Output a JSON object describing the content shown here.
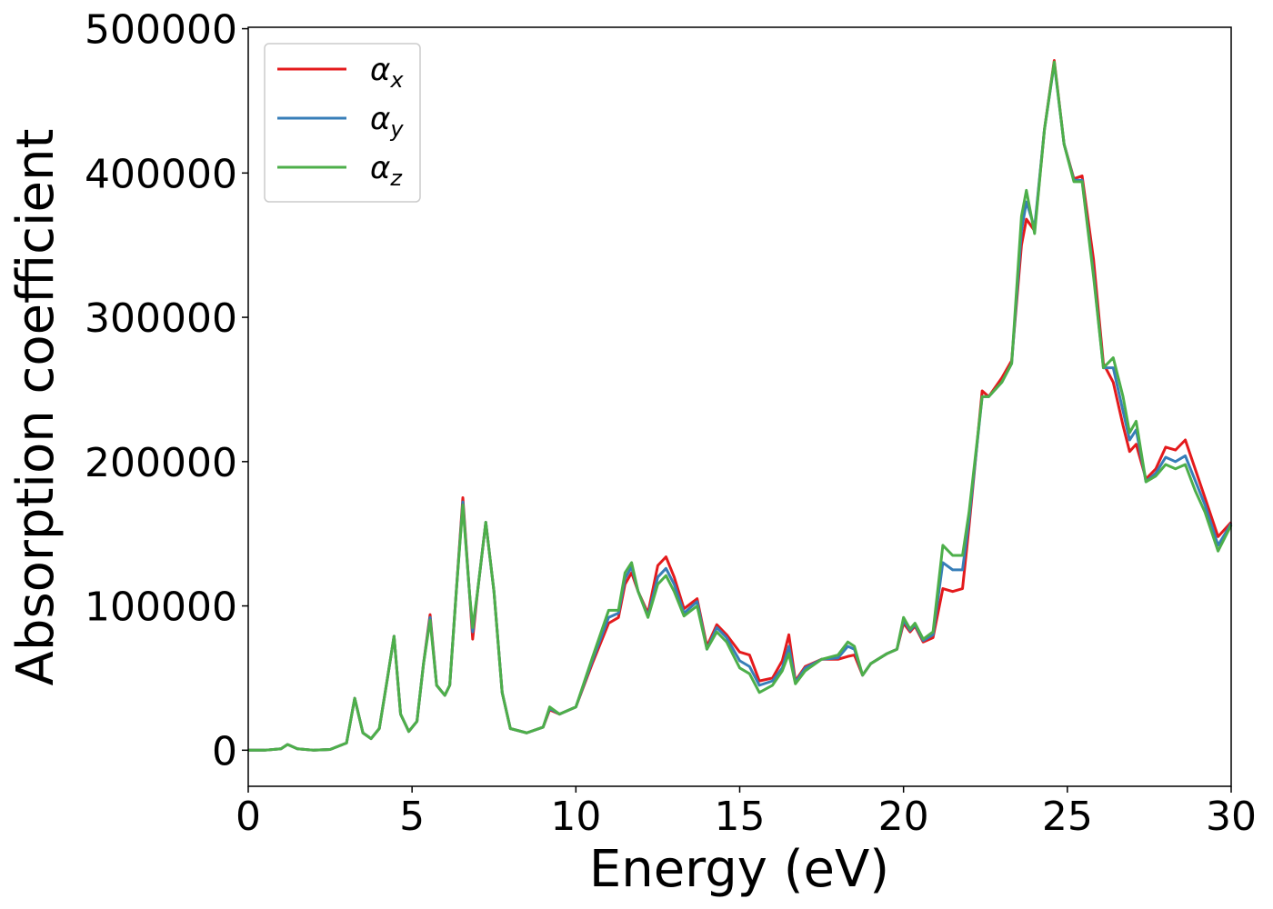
{
  "chart_data": {
    "type": "line",
    "xlabel": "Energy (eV)",
    "ylabel": "Absorption coefficient",
    "xlim": [
      0,
      30
    ],
    "xticks": [
      0,
      5,
      10,
      15,
      20,
      25,
      30
    ],
    "ylim": [
      -25000,
      501000
    ],
    "yticks": [
      0,
      100000,
      200000,
      300000,
      400000,
      500000
    ],
    "grid": false,
    "legend": "upper left",
    "x": [
      0,
      0.5,
      1,
      1.2,
      1.5,
      2,
      2.5,
      3,
      3.25,
      3.5,
      3.75,
      4,
      4.25,
      4.45,
      4.65,
      4.9,
      5.15,
      5.35,
      5.55,
      5.75,
      6,
      6.15,
      6.35,
      6.55,
      6.75,
      6.85,
      7,
      7.25,
      7.5,
      7.75,
      8,
      8.5,
      9,
      9.2,
      9.5,
      10,
      10.5,
      11,
      11.3,
      11.5,
      11.7,
      11.9,
      12.2,
      12.5,
      12.75,
      13,
      13.3,
      13.7,
      14,
      14.3,
      14.6,
      15,
      15.3,
      15.6,
      16,
      16.3,
      16.5,
      16.7,
      17,
      17.5,
      18,
      18.3,
      18.5,
      18.75,
      19,
      19.5,
      19.8,
      20,
      20.2,
      20.35,
      20.6,
      20.9,
      21.2,
      21.5,
      21.8,
      22,
      22.4,
      22.6,
      23,
      23.3,
      23.6,
      23.75,
      24,
      24.3,
      24.6,
      24.9,
      25.2,
      25.45,
      25.8,
      26.1,
      26.4,
      26.7,
      26.9,
      27.1,
      27.4,
      27.7,
      28,
      28.3,
      28.6,
      28.9,
      29.2,
      29.6,
      30
    ],
    "series": [
      {
        "name": "αx",
        "color": "#e41a1c",
        "values": [
          0,
          0,
          1000,
          4000,
          1000,
          0,
          500,
          5000,
          36000,
          12000,
          8000,
          15000,
          50000,
          79000,
          25000,
          13000,
          20000,
          60000,
          94000,
          45000,
          38000,
          45000,
          110000,
          175000,
          110000,
          77000,
          110000,
          158000,
          110000,
          40000,
          15000,
          12000,
          16000,
          28000,
          25000,
          30000,
          60000,
          88000,
          92000,
          115000,
          123000,
          110000,
          95000,
          128000,
          134000,
          120000,
          98000,
          105000,
          72000,
          87000,
          80000,
          68000,
          66000,
          48000,
          50000,
          62000,
          80000,
          48000,
          58000,
          63000,
          63000,
          65000,
          66000,
          52000,
          60000,
          67000,
          70000,
          88000,
          82000,
          86000,
          75000,
          78000,
          112000,
          110000,
          112000,
          155000,
          249000,
          245000,
          258000,
          270000,
          350000,
          368000,
          360000,
          430000,
          478000,
          420000,
          396000,
          398000,
          340000,
          268000,
          255000,
          225000,
          207000,
          212000,
          188000,
          195000,
          210000,
          208000,
          215000,
          195000,
          175000,
          148000,
          158000
        ]
      },
      {
        "name": "αy",
        "color": "#377eb8",
        "values": [
          0,
          0,
          1000,
          4000,
          1000,
          0,
          500,
          5000,
          36000,
          12000,
          8000,
          15000,
          50000,
          79000,
          25000,
          13000,
          20000,
          60000,
          92000,
          45000,
          38000,
          45000,
          110000,
          172000,
          110000,
          82000,
          110000,
          158000,
          110000,
          40000,
          15000,
          12000,
          16000,
          29000,
          25000,
          30000,
          62000,
          92000,
          95000,
          119000,
          127000,
          110000,
          93000,
          120000,
          126000,
          115000,
          95000,
          103000,
          70000,
          85000,
          78000,
          62000,
          58000,
          45000,
          48000,
          57000,
          72000,
          47000,
          57000,
          63000,
          64000,
          72000,
          70000,
          52000,
          60000,
          67000,
          70000,
          90000,
          83000,
          87000,
          76000,
          80000,
          130000,
          125000,
          125000,
          160000,
          245000,
          245000,
          255000,
          268000,
          360000,
          380000,
          362000,
          430000,
          476000,
          420000,
          395000,
          395000,
          330000,
          265000,
          265000,
          235000,
          215000,
          222000,
          186000,
          192000,
          203000,
          200000,
          204000,
          187000,
          170000,
          142000,
          157000
        ]
      },
      {
        "name": "αz",
        "color": "#4daf4a",
        "values": [
          0,
          0,
          1000,
          4000,
          1000,
          0,
          500,
          5000,
          36000,
          12000,
          8000,
          15000,
          50000,
          79000,
          25000,
          13000,
          20000,
          60000,
          90000,
          45000,
          38000,
          45000,
          110000,
          170000,
          110000,
          85000,
          110000,
          158000,
          110000,
          40000,
          15000,
          12000,
          16000,
          30000,
          25000,
          30000,
          64000,
          97000,
          97000,
          123000,
          130000,
          110000,
          92000,
          115000,
          121000,
          110000,
          93000,
          100000,
          70000,
          82000,
          75000,
          57000,
          53000,
          40000,
          45000,
          55000,
          67000,
          46000,
          55000,
          63000,
          66000,
          75000,
          72000,
          52000,
          60000,
          67000,
          70000,
          92000,
          84000,
          88000,
          77000,
          82000,
          142000,
          135000,
          135000,
          165000,
          245000,
          245000,
          255000,
          268000,
          370000,
          388000,
          358000,
          430000,
          477000,
          420000,
          394000,
          394000,
          328000,
          265000,
          272000,
          245000,
          220000,
          228000,
          186000,
          190000,
          198000,
          195000,
          198000,
          180000,
          165000,
          138000,
          156000
        ]
      }
    ]
  }
}
